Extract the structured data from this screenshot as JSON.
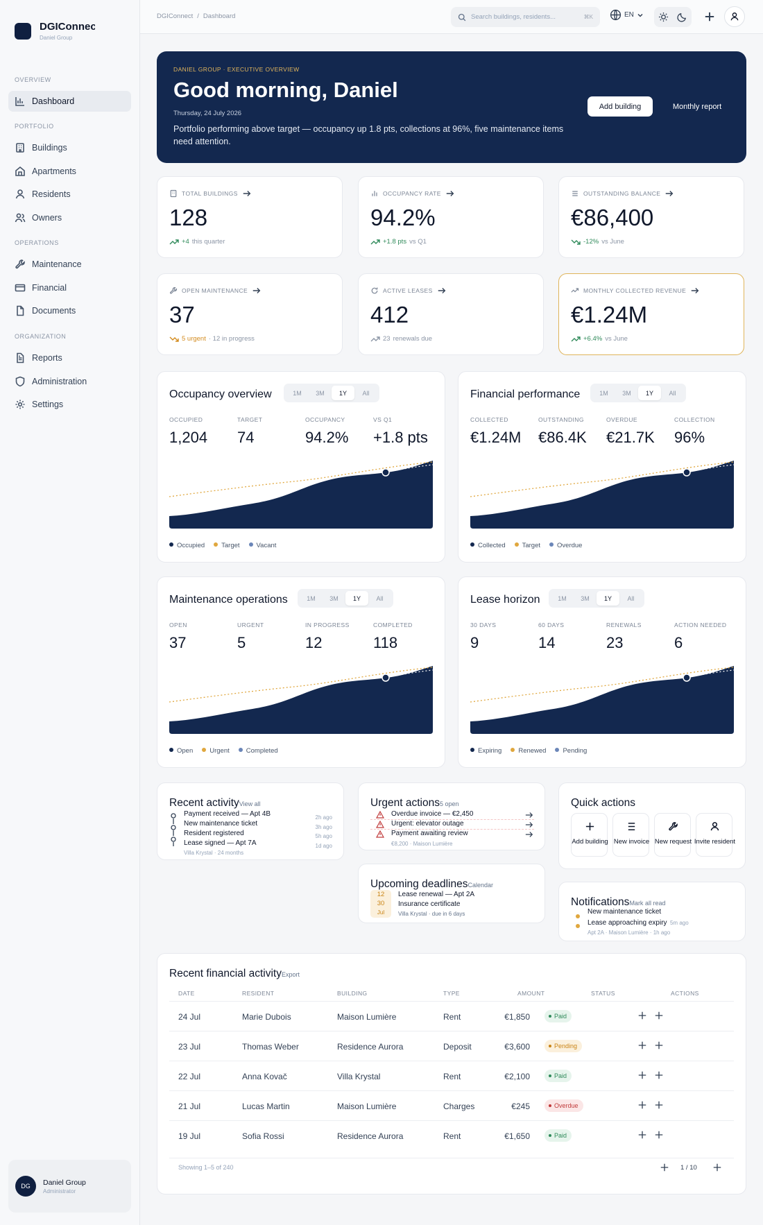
{
  "brand": {
    "name": "DGIConnect",
    "subtitle": "Daniel Group"
  },
  "sidebar": {
    "sections": {
      "overview": "Overview",
      "portfolio": "Portfolio",
      "operations": "Operations",
      "organization": "Organization"
    },
    "items": [
      {
        "label": "Dashboard",
        "icon": "bar-chart-icon",
        "active": true
      },
      {
        "label": "Buildings",
        "icon": "building-icon"
      },
      {
        "label": "Apartments",
        "icon": "home-icon"
      },
      {
        "label": "Residents",
        "icon": "user-icon"
      },
      {
        "label": "Owners",
        "icon": "users-icon"
      },
      {
        "label": "Maintenance",
        "icon": "wrench-icon"
      },
      {
        "label": "Financial",
        "icon": "credit-card-icon"
      },
      {
        "label": "Documents",
        "icon": "file-icon"
      },
      {
        "label": "Reports",
        "icon": "report-icon"
      },
      {
        "label": "Administration",
        "icon": "shield-icon"
      },
      {
        "label": "Settings",
        "icon": "gear-icon"
      }
    ],
    "user": {
      "initials": "DG",
      "name": "Daniel Group",
      "role": "Administrator"
    }
  },
  "header": {
    "breadcrumb": [
      "DGIConnect",
      "Dashboard"
    ],
    "search_placeholder": "Search buildings, residents...",
    "search_shortcut": "⌘K",
    "language": "EN"
  },
  "hero": {
    "eyebrow": "DANIEL GROUP · EXECUTIVE OVERVIEW",
    "title": "Good morning, Daniel",
    "date": "Thursday, 24 July 2026",
    "text": "Portfolio performing above target — occupancy up 1.8 pts, collections at 96%, five maintenance items need attention.",
    "primary_btn": "Add building",
    "secondary_btn": "Monthly report"
  },
  "kpis": [
    {
      "label": "Total buildings",
      "value": "128",
      "delta": "+4",
      "note": "this quarter",
      "tone": "up"
    },
    {
      "label": "Occupancy rate",
      "value": "94.2%",
      "delta": "+1.8 pts",
      "note": "vs Q1",
      "tone": "up"
    },
    {
      "label": "Outstanding balance",
      "value": "€86,400",
      "delta": "-12%",
      "note": "vs June",
      "tone": "down"
    },
    {
      "label": "Open maintenance",
      "value": "37",
      "delta": "5 urgent",
      "note": "· 12 in progress",
      "tone": "warn"
    },
    {
      "label": "Active leases",
      "value": "412",
      "delta": "23",
      "note": "renewals due",
      "tone": "muted"
    },
    {
      "label": "Monthly collected revenue",
      "value": "€1.24M",
      "delta": "+6.4%",
      "note": "vs June",
      "tone": "up"
    }
  ],
  "ranges": [
    "1M",
    "3M",
    "1Y",
    "All"
  ],
  "panels": [
    {
      "title": "Occupancy overview",
      "active_range": "1Y",
      "stats": [
        {
          "label": "Occupied",
          "value": "1,204"
        },
        {
          "label": "Target",
          "value": "74"
        },
        {
          "label": "Occupancy",
          "value": "94.2%"
        },
        {
          "label": "vs Q1",
          "value": "+1.8 pts"
        }
      ],
      "legend": [
        "Occupied",
        "Target",
        "Vacant"
      ]
    },
    {
      "title": "Financial performance",
      "active_range": "1Y",
      "stats": [
        {
          "label": "Collected",
          "value": "€1.24M"
        },
        {
          "label": "Outstanding",
          "value": "€86.4K"
        },
        {
          "label": "Overdue",
          "value": "€21.7K"
        },
        {
          "label": "Collection",
          "value": "96%"
        }
      ],
      "legend": [
        "Collected",
        "Target",
        "Overdue"
      ]
    },
    {
      "title": "Maintenance operations",
      "active_range": "1Y",
      "stats": [
        {
          "label": "Open",
          "value": "37"
        },
        {
          "label": "Urgent",
          "value": "5"
        },
        {
          "label": "In progress",
          "value": "12"
        },
        {
          "label": "Completed",
          "value": "118"
        }
      ],
      "legend": [
        "Open",
        "Urgent",
        "Completed"
      ]
    },
    {
      "title": "Lease horizon",
      "active_range": "1Y",
      "stats": [
        {
          "label": "30 days",
          "value": "9"
        },
        {
          "label": "60 days",
          "value": "14"
        },
        {
          "label": "Renewals",
          "value": "23"
        },
        {
          "label": "Action needed",
          "value": "6"
        }
      ],
      "legend": [
        "Expiring",
        "Renewed",
        "Pending"
      ]
    }
  ],
  "legend_colors": [
    "#13284f",
    "#e0a73e",
    "#6b86b8"
  ],
  "recent_activity": {
    "title": "Recent activity",
    "link": "View all",
    "items": [
      {
        "text": "Payment received — Apt 4B",
        "time": "2h ago"
      },
      {
        "text": "New maintenance ticket",
        "time": "3h ago"
      },
      {
        "text": "Resident registered",
        "time": "5h ago"
      },
      {
        "text": "Lease signed — Apt 7A",
        "time": "1d ago"
      }
    ],
    "sub": "Villa Krystal · 24 months"
  },
  "urgent_actions": {
    "title": "Urgent actions",
    "badge": "5 open",
    "items": [
      "Overdue invoice — €2,450",
      "Urgent: elevator outage",
      "Payment awaiting review"
    ],
    "sub": "€8,200 · Maison Lumière"
  },
  "upcoming": {
    "title": "Upcoming deadlines",
    "link": "Calendar",
    "dates": [
      "12",
      "30",
      "Jul"
    ],
    "items": [
      "Lease renewal — Apt 2A",
      "Insurance certificate"
    ],
    "sub": "Villa Krystal · due in 6 days"
  },
  "quick_actions": {
    "title": "Quick actions",
    "items": [
      "Add building",
      "New invoice",
      "New request",
      "Invite resident"
    ]
  },
  "notifications": {
    "title": "Notifications",
    "link": "Mark all read",
    "items": [
      "New maintenance ticket",
      "Lease approaching expiry"
    ],
    "time": "5m ago",
    "sub": "Apt 2A · Maison Lumière · 1h ago"
  },
  "transactions": {
    "title": "Recent financial activity",
    "link": "Export",
    "columns": [
      "Date",
      "Resident",
      "Building",
      "Type",
      "Amount",
      "Status",
      "Actions"
    ],
    "rows": [
      {
        "date": "24 Jul",
        "resident": "Marie Dubois",
        "building": "Maison Lumière",
        "type": "Rent",
        "amount": "€1,850",
        "status": "Paid"
      },
      {
        "date": "23 Jul",
        "resident": "Thomas Weber",
        "building": "Residence Aurora",
        "type": "Deposit",
        "amount": "€3,600",
        "status": "Pending"
      },
      {
        "date": "22 Jul",
        "resident": "Anna Kovač",
        "building": "Villa Krystal",
        "type": "Rent",
        "amount": "€2,100",
        "status": "Paid"
      },
      {
        "date": "21 Jul",
        "resident": "Lucas Martin",
        "building": "Maison Lumière",
        "type": "Charges",
        "amount": "€245",
        "status": "Overdue"
      },
      {
        "date": "19 Jul",
        "resident": "Sofia Rossi",
        "building": "Residence Aurora",
        "type": "Rent",
        "amount": "€1,650",
        "status": "Paid"
      }
    ],
    "footer": "Showing 1–5 of 240",
    "page": "1 / 10"
  }
}
